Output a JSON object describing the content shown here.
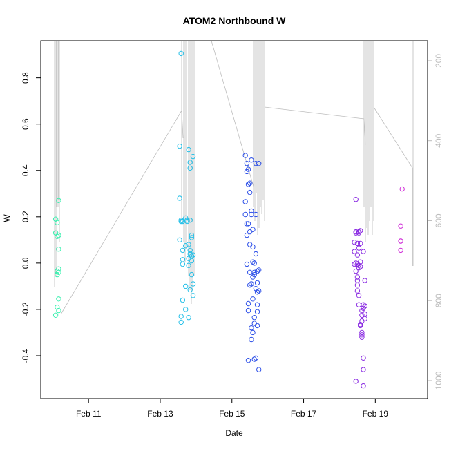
{
  "chart_data": {
    "type": "scatter",
    "title": "ATOM2 Northbound W",
    "xlabel": "Date",
    "ylabel": "W",
    "xlim": [
      "2024-02-09T16:00",
      "2024-02-20T11:00"
    ],
    "ylim": [
      -0.585,
      0.96
    ],
    "y2lim": [
      1045,
      150
    ],
    "x_ticks": [
      {
        "date": "2024-02-11",
        "label": "Feb 11"
      },
      {
        "date": "2024-02-13",
        "label": "Feb 13"
      },
      {
        "date": "2024-02-15",
        "label": "Feb 15"
      },
      {
        "date": "2024-02-17",
        "label": "Feb 17"
      },
      {
        "date": "2024-02-19",
        "label": "Feb 19"
      }
    ],
    "y_ticks": [
      -0.4,
      -0.2,
      0.0,
      0.2,
      0.4,
      0.6,
      0.8
    ],
    "y_tick_labels": [
      "-0.4",
      "-0.2",
      "0.0",
      "0.2",
      "0.4",
      "0.6",
      "0.8"
    ],
    "y2_ticks": [
      200,
      400,
      600,
      800,
      1000
    ],
    "y2_tick_labels": [
      "200",
      "400",
      "600",
      "800",
      "1000"
    ],
    "grid": false,
    "colors": {
      "pressure_line": "#bdbdbd",
      "right_axis": "#bdbdbd"
    },
    "series": [
      {
        "color": "#3df0b0",
        "x": [
          "2024-02-10T02:00",
          "2024-02-10T02:00",
          "2024-02-10T02:00",
          "2024-02-10T03:00",
          "2024-02-10T03:00",
          "2024-02-10T03:00",
          "2024-02-10T03:00",
          "2024-02-10T03:00",
          "2024-02-10T04:00",
          "2024-02-10T04:00",
          "2024-02-10T04:00",
          "2024-02-10T04:00",
          "2024-02-10T04:00",
          "2024-02-10T04:00",
          "2024-02-10T04:00"
        ],
        "y": [
          0.13,
          0.19,
          -0.225,
          0.115,
          -0.035,
          -0.05,
          0.175,
          -0.19,
          0.27,
          0.06,
          -0.155,
          -0.205,
          -0.04,
          -0.025,
          0.12
        ]
      },
      {
        "color": "#25c0e8",
        "x": [
          "2024-02-13T13:00",
          "2024-02-13T13:00",
          "2024-02-13T13:00",
          "2024-02-13T14:00",
          "2024-02-13T14:00",
          "2024-02-13T14:00",
          "2024-02-13T14:00",
          "2024-02-13T14:00",
          "2024-02-13T15:00",
          "2024-02-13T15:00",
          "2024-02-13T15:00",
          "2024-02-13T15:00",
          "2024-02-13T15:00",
          "2024-02-13T17:00",
          "2024-02-13T17:00",
          "2024-02-13T17:00",
          "2024-02-13T17:00",
          "2024-02-13T18:00",
          "2024-02-13T18:00",
          "2024-02-13T19:00",
          "2024-02-13T19:00",
          "2024-02-13T19:00",
          "2024-02-13T19:00",
          "2024-02-13T19:00",
          "2024-02-13T20:00",
          "2024-02-13T20:00",
          "2024-02-13T20:00",
          "2024-02-13T20:00",
          "2024-02-13T20:00",
          "2024-02-13T20:00",
          "2024-02-13T21:00",
          "2024-02-13T21:00",
          "2024-02-13T21:00",
          "2024-02-13T21:00",
          "2024-02-13T21:00",
          "2024-02-13T22:00",
          "2024-02-13T22:00",
          "2024-02-13T22:00",
          "2024-02-13T22:00"
        ],
        "y": [
          0.505,
          0.28,
          0.1,
          0.905,
          0.18,
          -0.23,
          -0.255,
          0.185,
          0.18,
          -0.005,
          -0.16,
          0.055,
          0.015,
          0.195,
          0.075,
          -0.1,
          -0.2,
          0.185,
          0.18,
          -0.235,
          0.08,
          -0.01,
          0.02,
          0.49,
          0.41,
          0.435,
          0.04,
          0.185,
          -0.115,
          0.055,
          0.01,
          -0.05,
          0.12,
          0.11,
          0.03,
          0.46,
          -0.09,
          0.035,
          -0.14
        ]
      },
      {
        "color": "#2d50e8",
        "x": [
          "2024-02-15T09:00",
          "2024-02-15T09:00",
          "2024-02-15T09:00",
          "2024-02-15T10:00",
          "2024-02-15T10:00",
          "2024-02-15T10:00",
          "2024-02-15T10:00",
          "2024-02-15T10:00",
          "2024-02-15T11:00",
          "2024-02-15T11:00",
          "2024-02-15T11:00",
          "2024-02-15T11:00",
          "2024-02-15T11:00",
          "2024-02-15T11:00",
          "2024-02-15T12:00",
          "2024-02-15T12:00",
          "2024-02-15T12:00",
          "2024-02-15T12:00",
          "2024-02-15T12:00",
          "2024-02-15T12:00",
          "2024-02-15T13:00",
          "2024-02-15T13:00",
          "2024-02-15T13:00",
          "2024-02-15T13:00",
          "2024-02-15T13:00",
          "2024-02-15T13:00",
          "2024-02-15T14:00",
          "2024-02-15T14:00",
          "2024-02-15T14:00",
          "2024-02-15T14:00",
          "2024-02-15T14:00",
          "2024-02-15T14:00",
          "2024-02-15T15:00",
          "2024-02-15T15:00",
          "2024-02-15T15:00",
          "2024-02-15T15:00",
          "2024-02-15T15:00",
          "2024-02-15T15:00",
          "2024-02-15T16:00",
          "2024-02-15T16:00",
          "2024-02-15T16:00",
          "2024-02-15T16:00",
          "2024-02-15T16:00",
          "2024-02-15T17:00",
          "2024-02-15T17:00",
          "2024-02-15T17:00",
          "2024-02-15T17:00",
          "2024-02-15T17:00",
          "2024-02-15T17:00",
          "2024-02-15T18:00",
          "2024-02-15T18:00",
          "2024-02-15T18:00",
          "2024-02-15T18:00"
        ],
        "y": [
          0.265,
          0.21,
          0.465,
          0.43,
          0.395,
          0.17,
          0.12,
          -0.005,
          0.34,
          0.17,
          -0.205,
          -0.175,
          -0.42,
          0.405,
          0.345,
          0.305,
          0.135,
          0.08,
          -0.04,
          -0.095,
          0.445,
          0.225,
          0.21,
          -0.09,
          -0.28,
          -0.33,
          0.005,
          0.145,
          0.07,
          -0.06,
          -0.155,
          -0.3,
          -0.415,
          0.0,
          -0.04,
          -0.05,
          -0.235,
          -0.26,
          0.43,
          0.21,
          0.04,
          -0.11,
          -0.41,
          -0.035,
          -0.085,
          -0.125,
          -0.18,
          -0.21,
          -0.27,
          -0.46,
          0.43,
          -0.03,
          -0.12
        ]
      },
      {
        "color": "#8a2be2",
        "x": [
          "2024-02-18T10:00",
          "2024-02-18T10:00",
          "2024-02-18T10:00",
          "2024-02-18T11:00",
          "2024-02-18T11:00",
          "2024-02-18T11:00",
          "2024-02-18T11:00",
          "2024-02-18T11:00",
          "2024-02-18T11:00",
          "2024-02-18T12:00",
          "2024-02-18T12:00",
          "2024-02-18T12:00",
          "2024-02-18T12:00",
          "2024-02-18T12:00",
          "2024-02-18T12:00",
          "2024-02-18T12:00",
          "2024-02-18T13:00",
          "2024-02-18T13:00",
          "2024-02-18T13:00",
          "2024-02-18T13:00",
          "2024-02-18T13:00",
          "2024-02-18T13:00",
          "2024-02-18T13:00",
          "2024-02-18T14:00",
          "2024-02-18T14:00",
          "2024-02-18T14:00",
          "2024-02-18T14:00",
          "2024-02-18T14:00",
          "2024-02-18T14:00",
          "2024-02-18T15:00",
          "2024-02-18T15:00",
          "2024-02-18T15:00",
          "2024-02-18T15:00",
          "2024-02-18T15:00",
          "2024-02-18T15:00",
          "2024-02-18T16:00",
          "2024-02-18T16:00",
          "2024-02-18T16:00",
          "2024-02-18T16:00",
          "2024-02-18T16:00",
          "2024-02-18T16:00",
          "2024-02-18T17:00",
          "2024-02-18T17:00",
          "2024-02-18T17:00",
          "2024-02-18T17:00"
        ],
        "y": [
          0.05,
          0.09,
          -0.005,
          0.275,
          0.135,
          0.13,
          -0.035,
          -0.51,
          0.0,
          0.085,
          0.035,
          -0.005,
          -0.06,
          -0.075,
          -0.095,
          -0.12,
          0.135,
          0.13,
          -0.01,
          -0.02,
          0.065,
          -0.14,
          -0.18,
          0.14,
          0.085,
          0.005,
          -0.015,
          -0.265,
          -0.27,
          -0.225,
          -0.25,
          -0.32,
          -0.31,
          -0.3,
          -0.205,
          -0.18,
          -0.195,
          -0.41,
          -0.46,
          -0.53,
          0.05,
          -0.185,
          -0.22,
          -0.24,
          -0.075
        ]
      },
      {
        "color": "#d030d8",
        "x": [
          "2024-02-19T17:00",
          "2024-02-19T17:00",
          "2024-02-19T17:00",
          "2024-02-19T17:00",
          "2024-02-19T18:00"
        ],
        "y": [
          0.095,
          0.095,
          0.055,
          0.16,
          0.32
        ]
      }
    ]
  }
}
